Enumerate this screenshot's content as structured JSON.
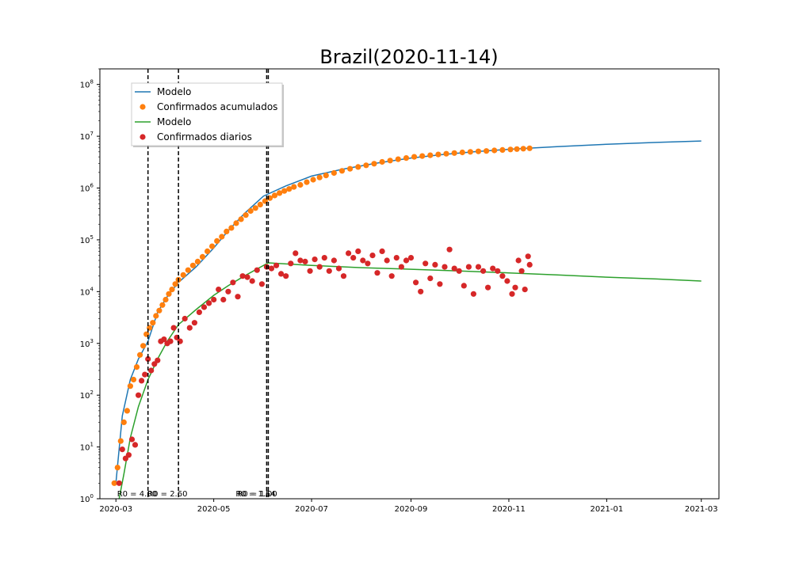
{
  "chart_data": {
    "type": "scatter",
    "title": "Brazil(2020-11-14)",
    "xlabel": "",
    "ylabel": "",
    "yscale": "log",
    "ylim": [
      1,
      200000000
    ],
    "xlim": [
      "2020-02-20",
      "2021-03-12"
    ],
    "x_ticks": [
      "2020-03",
      "2020-05",
      "2020-07",
      "2020-09",
      "2020-11",
      "2021-01",
      "2021-03"
    ],
    "y_ticks": [
      {
        "exp": 0,
        "label_base": "10",
        "label_exp": "0"
      },
      {
        "exp": 1,
        "label_base": "10",
        "label_exp": "1"
      },
      {
        "exp": 2,
        "label_base": "10",
        "label_exp": "2"
      },
      {
        "exp": 3,
        "label_base": "10",
        "label_exp": "3"
      },
      {
        "exp": 4,
        "label_base": "10",
        "label_exp": "4"
      },
      {
        "exp": 5,
        "label_base": "10",
        "label_exp": "5"
      },
      {
        "exp": 6,
        "label_base": "10",
        "label_exp": "6"
      },
      {
        "exp": 7,
        "label_base": "10",
        "label_exp": "7"
      },
      {
        "exp": 8,
        "label_base": "10",
        "label_exp": "8"
      }
    ],
    "grid": false,
    "legend_position": "upper-left",
    "legend": [
      {
        "label": "Modelo",
        "kind": "line",
        "color": "#1f77b4"
      },
      {
        "label": "Confirmados acumulados",
        "kind": "marker",
        "color": "#ff7f0e"
      },
      {
        "label": "Modelo",
        "kind": "line",
        "color": "#2ca02c"
      },
      {
        "label": "Confirmados diarios",
        "kind": "marker",
        "color": "#d62728"
      }
    ],
    "vlines": [
      {
        "date": "2020-03-21",
        "label": "R0 = 4.00"
      },
      {
        "date": "2020-04-09",
        "label": "R0 = 2.60"
      },
      {
        "date": "2020-06-03",
        "label": "R0 = 1.54"
      },
      {
        "date": "2020-06-04",
        "label": "R0 = 1.00"
      }
    ],
    "series": [
      {
        "name": "Modelo",
        "kind": "line",
        "color": "#1f77b4",
        "points": [
          [
            "2020-03-01",
            2
          ],
          [
            "2020-03-05",
            40
          ],
          [
            "2020-03-10",
            200
          ],
          [
            "2020-03-15",
            500
          ],
          [
            "2020-03-21",
            1100
          ],
          [
            "2020-03-27",
            4000
          ],
          [
            "2020-04-02",
            8000
          ],
          [
            "2020-04-09",
            15000
          ],
          [
            "2020-04-20",
            30000
          ],
          [
            "2020-05-01",
            70000
          ],
          [
            "2020-05-10",
            150000
          ],
          [
            "2020-05-20",
            320000
          ],
          [
            "2020-06-01",
            700000
          ],
          [
            "2020-06-15",
            1100000
          ],
          [
            "2020-07-01",
            1700000
          ],
          [
            "2020-07-20",
            2300000
          ],
          [
            "2020-08-10",
            3000000
          ],
          [
            "2020-09-01",
            3800000
          ],
          [
            "2020-09-20",
            4400000
          ],
          [
            "2020-10-10",
            5000000
          ],
          [
            "2020-11-01",
            5600000
          ],
          [
            "2020-11-14",
            5900000
          ],
          [
            "2020-12-01",
            6300000
          ],
          [
            "2021-01-01",
            7000000
          ],
          [
            "2021-02-01",
            7600000
          ],
          [
            "2021-03-01",
            8100000
          ]
        ]
      },
      {
        "name": "Confirmados acumulados",
        "kind": "scatter",
        "color": "#ff7f0e",
        "points": [
          [
            "2020-02-29",
            2
          ],
          [
            "2020-03-02",
            4
          ],
          [
            "2020-03-04",
            13
          ],
          [
            "2020-03-06",
            30
          ],
          [
            "2020-03-08",
            50
          ],
          [
            "2020-03-10",
            150
          ],
          [
            "2020-03-12",
            200
          ],
          [
            "2020-03-14",
            350
          ],
          [
            "2020-03-16",
            600
          ],
          [
            "2020-03-18",
            900
          ],
          [
            "2020-03-20",
            1500
          ],
          [
            "2020-03-22",
            2000
          ],
          [
            "2020-03-24",
            2500
          ],
          [
            "2020-03-26",
            3400
          ],
          [
            "2020-03-28",
            4300
          ],
          [
            "2020-03-30",
            5500
          ],
          [
            "2020-04-01",
            7000
          ],
          [
            "2020-04-03",
            9000
          ],
          [
            "2020-04-05",
            11000
          ],
          [
            "2020-04-07",
            14000
          ],
          [
            "2020-04-09",
            17000
          ],
          [
            "2020-04-12",
            21000
          ],
          [
            "2020-04-15",
            26000
          ],
          [
            "2020-04-18",
            32000
          ],
          [
            "2020-04-21",
            38000
          ],
          [
            "2020-04-24",
            47000
          ],
          [
            "2020-04-27",
            60000
          ],
          [
            "2020-04-30",
            75000
          ],
          [
            "2020-05-03",
            95000
          ],
          [
            "2020-05-06",
            115000
          ],
          [
            "2020-05-09",
            145000
          ],
          [
            "2020-05-12",
            170000
          ],
          [
            "2020-05-15",
            210000
          ],
          [
            "2020-05-18",
            250000
          ],
          [
            "2020-05-21",
            300000
          ],
          [
            "2020-05-24",
            360000
          ],
          [
            "2020-05-27",
            410000
          ],
          [
            "2020-05-30",
            480000
          ],
          [
            "2020-06-02",
            560000
          ],
          [
            "2020-06-05",
            640000
          ],
          [
            "2020-06-08",
            720000
          ],
          [
            "2020-06-11",
            800000
          ],
          [
            "2020-06-14",
            880000
          ],
          [
            "2020-06-17",
            960000
          ],
          [
            "2020-06-20",
            1050000
          ],
          [
            "2020-06-24",
            1150000
          ],
          [
            "2020-06-28",
            1300000
          ],
          [
            "2020-07-02",
            1450000
          ],
          [
            "2020-07-06",
            1600000
          ],
          [
            "2020-07-10",
            1750000
          ],
          [
            "2020-07-15",
            1950000
          ],
          [
            "2020-07-20",
            2150000
          ],
          [
            "2020-07-25",
            2350000
          ],
          [
            "2020-07-30",
            2550000
          ],
          [
            "2020-08-04",
            2750000
          ],
          [
            "2020-08-09",
            2950000
          ],
          [
            "2020-08-14",
            3200000
          ],
          [
            "2020-08-19",
            3400000
          ],
          [
            "2020-08-24",
            3600000
          ],
          [
            "2020-08-29",
            3800000
          ],
          [
            "2020-09-03",
            4000000
          ],
          [
            "2020-09-08",
            4150000
          ],
          [
            "2020-09-13",
            4300000
          ],
          [
            "2020-09-18",
            4450000
          ],
          [
            "2020-09-23",
            4600000
          ],
          [
            "2020-09-28",
            4750000
          ],
          [
            "2020-10-03",
            4880000
          ],
          [
            "2020-10-08",
            5000000
          ],
          [
            "2020-10-13",
            5100000
          ],
          [
            "2020-10-18",
            5200000
          ],
          [
            "2020-10-23",
            5320000
          ],
          [
            "2020-10-28",
            5440000
          ],
          [
            "2020-11-02",
            5550000
          ],
          [
            "2020-11-06",
            5650000
          ],
          [
            "2020-11-10",
            5750000
          ],
          [
            "2020-11-14",
            5850000
          ]
        ]
      },
      {
        "name": "Modelo",
        "kind": "line",
        "color": "#2ca02c",
        "points": [
          [
            "2020-03-03",
            1
          ],
          [
            "2020-03-06",
            3
          ],
          [
            "2020-03-10",
            15
          ],
          [
            "2020-03-15",
            60
          ],
          [
            "2020-03-21",
            200
          ],
          [
            "2020-03-27",
            500
          ],
          [
            "2020-04-02",
            1100
          ],
          [
            "2020-04-09",
            2300
          ],
          [
            "2020-04-20",
            4500
          ],
          [
            "2020-05-01",
            8500
          ],
          [
            "2020-05-10",
            13000
          ],
          [
            "2020-05-20",
            20000
          ],
          [
            "2020-06-04",
            36000
          ],
          [
            "2020-07-01",
            32000
          ],
          [
            "2020-08-01",
            29000
          ],
          [
            "2020-09-01",
            27000
          ],
          [
            "2020-10-01",
            25000
          ],
          [
            "2020-11-01",
            23000
          ],
          [
            "2020-12-01",
            21000
          ],
          [
            "2021-01-01",
            19000
          ],
          [
            "2021-02-01",
            17500
          ],
          [
            "2021-03-01",
            16000
          ]
        ]
      },
      {
        "name": "Confirmados diarios",
        "kind": "scatter",
        "color": "#d62728",
        "points": [
          [
            "2020-03-03",
            2
          ],
          [
            "2020-03-05",
            9
          ],
          [
            "2020-03-07",
            6
          ],
          [
            "2020-03-09",
            7
          ],
          [
            "2020-03-11",
            14
          ],
          [
            "2020-03-13",
            11
          ],
          [
            "2020-03-15",
            100
          ],
          [
            "2020-03-17",
            190
          ],
          [
            "2020-03-19",
            250
          ],
          [
            "2020-03-21",
            500
          ],
          [
            "2020-03-23",
            300
          ],
          [
            "2020-03-25",
            400
          ],
          [
            "2020-03-27",
            470
          ],
          [
            "2020-03-29",
            1100
          ],
          [
            "2020-03-31",
            1200
          ],
          [
            "2020-04-02",
            1000
          ],
          [
            "2020-04-04",
            1100
          ],
          [
            "2020-04-06",
            2000
          ],
          [
            "2020-04-08",
            1300
          ],
          [
            "2020-04-10",
            1100
          ],
          [
            "2020-04-13",
            3000
          ],
          [
            "2020-04-16",
            2000
          ],
          [
            "2020-04-19",
            2500
          ],
          [
            "2020-04-22",
            4000
          ],
          [
            "2020-04-25",
            5000
          ],
          [
            "2020-04-28",
            6000
          ],
          [
            "2020-05-01",
            7000
          ],
          [
            "2020-05-04",
            11000
          ],
          [
            "2020-05-07",
            7000
          ],
          [
            "2020-05-10",
            10000
          ],
          [
            "2020-05-13",
            15000
          ],
          [
            "2020-05-16",
            8000
          ],
          [
            "2020-05-19",
            20000
          ],
          [
            "2020-05-22",
            19000
          ],
          [
            "2020-05-25",
            16000
          ],
          [
            "2020-05-28",
            26000
          ],
          [
            "2020-05-31",
            14000
          ],
          [
            "2020-06-03",
            30000
          ],
          [
            "2020-06-06",
            28000
          ],
          [
            "2020-06-09",
            32000
          ],
          [
            "2020-06-12",
            22000
          ],
          [
            "2020-06-15",
            20000
          ],
          [
            "2020-06-18",
            35000
          ],
          [
            "2020-06-21",
            55000
          ],
          [
            "2020-06-24",
            40000
          ],
          [
            "2020-06-27",
            38000
          ],
          [
            "2020-06-30",
            25000
          ],
          [
            "2020-07-03",
            42000
          ],
          [
            "2020-07-06",
            30000
          ],
          [
            "2020-07-09",
            45000
          ],
          [
            "2020-07-12",
            25000
          ],
          [
            "2020-07-15",
            40000
          ],
          [
            "2020-07-18",
            28000
          ],
          [
            "2020-07-21",
            20000
          ],
          [
            "2020-07-24",
            55000
          ],
          [
            "2020-07-27",
            45000
          ],
          [
            "2020-07-30",
            60000
          ],
          [
            "2020-08-02",
            40000
          ],
          [
            "2020-08-05",
            35000
          ],
          [
            "2020-08-08",
            50000
          ],
          [
            "2020-08-11",
            23000
          ],
          [
            "2020-08-14",
            60000
          ],
          [
            "2020-08-17",
            40000
          ],
          [
            "2020-08-20",
            20000
          ],
          [
            "2020-08-23",
            45000
          ],
          [
            "2020-08-26",
            30000
          ],
          [
            "2020-08-29",
            40000
          ],
          [
            "2020-09-01",
            45000
          ],
          [
            "2020-09-04",
            15000
          ],
          [
            "2020-09-07",
            10000
          ],
          [
            "2020-09-10",
            35000
          ],
          [
            "2020-09-13",
            18000
          ],
          [
            "2020-09-16",
            33000
          ],
          [
            "2020-09-19",
            14000
          ],
          [
            "2020-09-22",
            30000
          ],
          [
            "2020-09-25",
            65000
          ],
          [
            "2020-09-28",
            28000
          ],
          [
            "2020-10-01",
            25000
          ],
          [
            "2020-10-04",
            13000
          ],
          [
            "2020-10-07",
            30000
          ],
          [
            "2020-10-10",
            9000
          ],
          [
            "2020-10-13",
            30000
          ],
          [
            "2020-10-16",
            25000
          ],
          [
            "2020-10-19",
            12000
          ],
          [
            "2020-10-22",
            28000
          ],
          [
            "2020-10-25",
            25000
          ],
          [
            "2020-10-28",
            20000
          ],
          [
            "2020-10-31",
            16000
          ],
          [
            "2020-11-03",
            9000
          ],
          [
            "2020-11-05",
            12000
          ],
          [
            "2020-11-07",
            40000
          ],
          [
            "2020-11-09",
            25000
          ],
          [
            "2020-11-11",
            11000
          ],
          [
            "2020-11-13",
            48000
          ],
          [
            "2020-11-14",
            33000
          ]
        ]
      }
    ]
  }
}
